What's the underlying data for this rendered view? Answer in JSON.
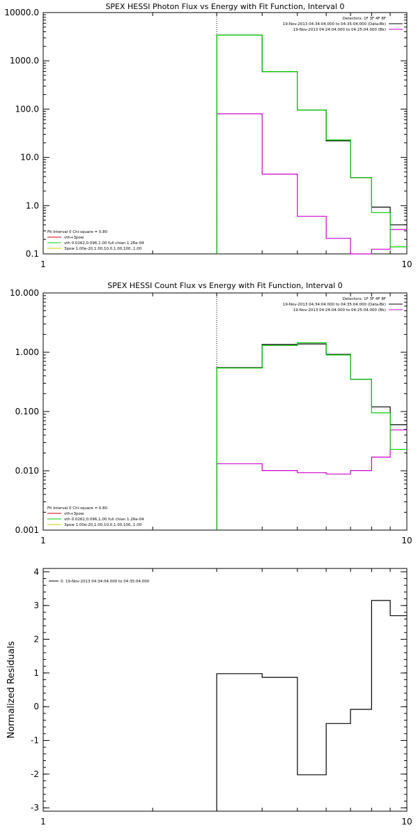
{
  "chart_data": [
    {
      "type": "line",
      "title": "SPEX HESSI Photon Flux vs Energy with Fit Function, Interval 0",
      "xscale": "log",
      "xlim": [
        1,
        10
      ],
      "yscale": "log",
      "ylim": [
        0.1,
        10000
      ],
      "x_ticks": [
        {
          "v": 1,
          "label": "1"
        },
        {
          "v": 10,
          "label": "10"
        }
      ],
      "y_ticks": [
        {
          "v": 0.1,
          "label": "0.1"
        },
        {
          "v": 1,
          "label": "1.0"
        },
        {
          "v": 10,
          "label": "10.0"
        },
        {
          "v": 100,
          "label": "100.0"
        },
        {
          "v": 1000,
          "label": "1000.0"
        },
        {
          "v": 10000,
          "label": "10000.0"
        }
      ],
      "vline_x": 3.0,
      "legend_top_right": [
        {
          "text": "Detectors: 1F 3F 4F 8F",
          "color": ""
        },
        {
          "text": "19-Nov-2013 04:34:04.000 to 04:35:04.000 (Data-Bk)",
          "color": "#000000"
        },
        {
          "text": "19-Nov-2013 04:24:04.000 to 04:25:04.000 (Bk)",
          "color": "#cc00cc"
        }
      ],
      "legend_bottom_left": [
        {
          "text": "Fit Interval 0   Chi-square = 0.80",
          "color": ""
        },
        {
          "text": "vth+3pow",
          "color": "#cc0000"
        },
        {
          "text": "vth 0.0262,0.096,1.00  full chian 1.26e-04",
          "color": "#00cc00"
        },
        {
          "text": "3pow 1.00e-20,1.00,10.0,1.00,100.,1.00",
          "color": "#cccc00"
        }
      ],
      "edges": [
        3,
        4,
        5,
        6,
        7,
        8,
        9,
        10
      ],
      "series": [
        {
          "color": "#000000",
          "values": [
            3400,
            600,
            95,
            22,
            3.8,
            0.93,
            0.4
          ]
        },
        {
          "color": "#cc00cc",
          "values": [
            80,
            4.5,
            0.6,
            0.21,
            0.1,
            0.125,
            0.32
          ]
        },
        {
          "color": "#00cc00",
          "values": [
            3400,
            600,
            95,
            23,
            3.8,
            0.72,
            0.14
          ]
        }
      ]
    },
    {
      "type": "line",
      "title": "SPEX HESSI Count Flux vs Energy with Fit Function, Interval 0",
      "xscale": "log",
      "xlim": [
        1,
        10
      ],
      "yscale": "log",
      "ylim": [
        0.001,
        10
      ],
      "x_ticks": [
        {
          "v": 1,
          "label": "1"
        },
        {
          "v": 10,
          "label": "10"
        }
      ],
      "y_ticks": [
        {
          "v": 0.001,
          "label": "0.001"
        },
        {
          "v": 0.01,
          "label": "0.010"
        },
        {
          "v": 0.1,
          "label": "0.100"
        },
        {
          "v": 1,
          "label": "1.000"
        },
        {
          "v": 10,
          "label": "10.000"
        }
      ],
      "vline_x": 3.0,
      "legend_top_right": [
        {
          "text": "Detectors: 1F 3F 4F 8F",
          "color": ""
        },
        {
          "text": "19-Nov-2013 04:34:04.000 to 04:35:04.000 (Data-Bk)",
          "color": "#000000"
        },
        {
          "text": "19-Nov-2013 04:24:04.000 to 04:25:04.000 (Bk)",
          "color": "#cc00cc"
        }
      ],
      "legend_bottom_left": [
        {
          "text": "Fit Interval 0   Chi-square = 0.80",
          "color": ""
        },
        {
          "text": "vth+3pow",
          "color": "#cc0000"
        },
        {
          "text": "vth 0.0262,0.096,1.00  full chian 1.26e-04",
          "color": "#00cc00"
        },
        {
          "text": "3pow 1.00e-20,1.00,10.0,1.00,100.,1.00",
          "color": "#cccc00"
        }
      ],
      "edges": [
        3,
        4,
        5,
        6,
        7,
        8,
        9,
        10
      ],
      "series": [
        {
          "color": "#000000",
          "values": [
            0.55,
            1.35,
            1.38,
            0.92,
            0.35,
            0.12,
            0.06
          ]
        },
        {
          "color": "#cc00cc",
          "values": [
            0.0132,
            0.0101,
            0.0093,
            0.0088,
            0.0101,
            0.017,
            0.049
          ]
        },
        {
          "color": "#00cc00",
          "values": [
            0.54,
            1.3,
            1.45,
            0.9,
            0.35,
            0.095,
            0.023
          ]
        }
      ]
    },
    {
      "type": "line",
      "title": "",
      "xscale": "log",
      "xlim": [
        1,
        10
      ],
      "yscale": "linear",
      "ylim": [
        -3.1,
        4.1
      ],
      "ylabel": "Normalized Residuals",
      "x_ticks": [
        {
          "v": 1,
          "label": "1"
        },
        {
          "v": 10,
          "label": "10"
        }
      ],
      "y_ticks": [
        {
          "v": -3,
          "label": "-3"
        },
        {
          "v": -2,
          "label": "-2"
        },
        {
          "v": -1,
          "label": "-1"
        },
        {
          "v": 0,
          "label": "0"
        },
        {
          "v": 1,
          "label": "1"
        },
        {
          "v": 2,
          "label": "2"
        },
        {
          "v": 3,
          "label": "3"
        },
        {
          "v": 4,
          "label": "4"
        }
      ],
      "legend_top_left": [
        {
          "text": "0. 19-Nov-2013 04:34:04.000 to 04:35:04.000",
          "color": "#000000"
        }
      ],
      "edges": [
        3,
        4,
        5,
        6,
        7,
        8,
        9,
        10
      ],
      "series": [
        {
          "color": "#000000",
          "values": [
            0.98,
            0.87,
            -2.02,
            -0.5,
            -0.08,
            3.15,
            2.7
          ]
        }
      ]
    }
  ]
}
